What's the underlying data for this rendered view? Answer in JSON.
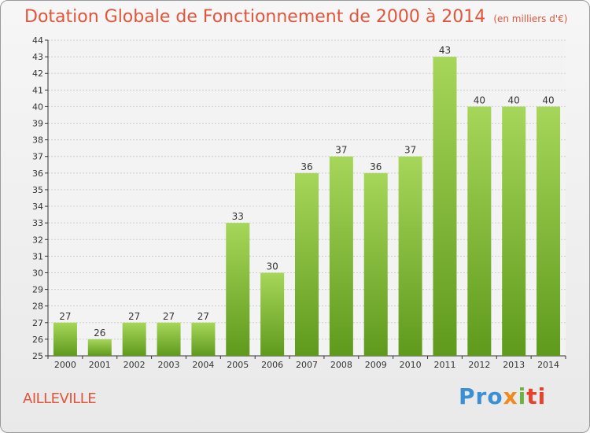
{
  "header": {
    "title": "Dotation Globale de Fonctionnement de 2000 à 2014",
    "unit": "(en milliers d'€)"
  },
  "footer": {
    "commune": "AILLEVILLE",
    "brand_parts": [
      "Pro",
      "x",
      "i",
      "ti"
    ]
  },
  "colors": {
    "title": "#e0563b",
    "bar_top": "#a6d65a",
    "bar_bottom": "#5f9a1c",
    "grid": "#d0d0d0",
    "axis": "#333333"
  },
  "chart_data": {
    "type": "bar",
    "categories": [
      "2000",
      "2001",
      "2002",
      "2003",
      "2004",
      "2005",
      "2006",
      "2007",
      "2008",
      "2009",
      "2010",
      "2011",
      "2012",
      "2013",
      "2014"
    ],
    "values": [
      27,
      26,
      27,
      27,
      27,
      33,
      30,
      36,
      37,
      36,
      37,
      43,
      40,
      40,
      40
    ],
    "ylim": [
      25,
      44
    ],
    "y_ticks": [
      25,
      26,
      27,
      28,
      29,
      30,
      31,
      32,
      33,
      34,
      35,
      36,
      37,
      38,
      39,
      40,
      41,
      42,
      43,
      44
    ],
    "grid": true,
    "xlabel": "",
    "ylabel": ""
  }
}
